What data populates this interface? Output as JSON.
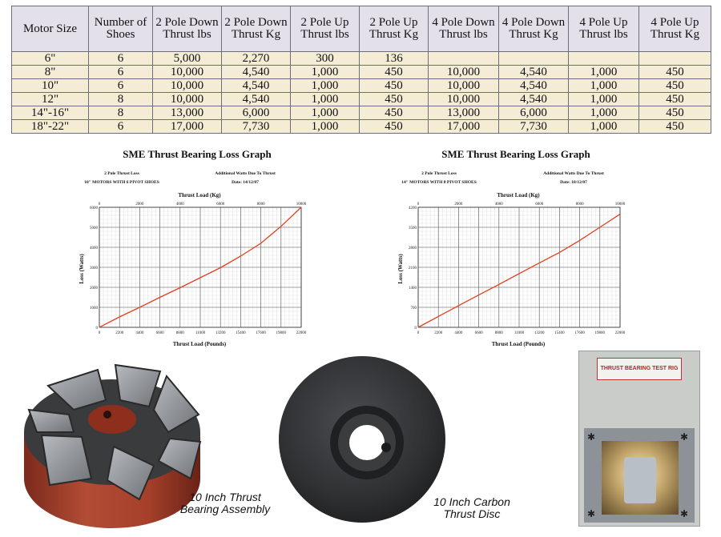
{
  "table": {
    "headers": [
      "Motor Size",
      "Number of Shoes",
      "2 Pole Down Thrust lbs",
      "2 Pole Down Thrust Kg",
      "2 Pole Up Thrust lbs",
      "2 Pole Up Thrust Kg",
      "4 Pole Down Thrust lbs",
      "4 Pole Down Thrust Kg",
      "4 Pole Up Thrust lbs",
      "4 Pole Up Thrust Kg"
    ],
    "rows": [
      [
        "6\"",
        "6",
        "5,000",
        "2,270",
        "300",
        "136",
        "",
        "",
        "",
        ""
      ],
      [
        "8\"",
        "6",
        "10,000",
        "4,540",
        "1,000",
        "450",
        "10,000",
        "4,540",
        "1,000",
        "450"
      ],
      [
        "10\"",
        "6",
        "10,000",
        "4,540",
        "1,000",
        "450",
        "10,000",
        "4,540",
        "1,000",
        "450"
      ],
      [
        "12\"",
        "8",
        "10,000",
        "4,540",
        "1,000",
        "450",
        "10,000",
        "4,540",
        "1,000",
        "450"
      ],
      [
        "14\"-16\"",
        "8",
        "13,000",
        "6,000",
        "1,000",
        "450",
        "13,000",
        "6,000",
        "1,000",
        "450"
      ],
      [
        "18\"-22\"",
        "6",
        "17,000",
        "7,730",
        "1,000",
        "450",
        "17,000",
        "7,730",
        "1,000",
        "450"
      ]
    ]
  },
  "graphs": [
    {
      "title": "SME Thrust Bearing Loss Graph",
      "subtitle_left_1": "2 Pole Thrust Loss",
      "subtitle_left_2": "10\" MOTORS WITH 6 PIVOT SHOES",
      "subtitle_right_1": "Additional Watts Due To Thrust",
      "subtitle_right_2": "Date: 14/12/07",
      "top_axis_label": "Thrust Load (Kg)",
      "bottom_axis_label": "Thrust Load (Pounds)",
      "y_axis_label": "Loss (Watts)",
      "line_color": "#e0401e"
    },
    {
      "title": "SME Thrust Bearing Loss Graph",
      "subtitle_left_1": "2 Pole Thrust Loss",
      "subtitle_left_2": "14\" MOTORS WITH 8 PIVOT SHOES",
      "subtitle_right_1": "Additional Watts Due To Thrust",
      "subtitle_right_2": "Date: 18/12/07",
      "top_axis_label": "Thrust Load (Kg)",
      "bottom_axis_label": "Thrust Load (Pounds)",
      "y_axis_label": "Loss (Watts)",
      "line_color": "#e0401e"
    }
  ],
  "chart_data": [
    {
      "type": "line",
      "title": "SME Thrust Bearing Loss Graph",
      "xlabel": "Thrust Load (Pounds)",
      "x2label": "Thrust Load (Kg)",
      "ylabel": "Loss (Watts)",
      "xlim": [
        0,
        22000
      ],
      "x2lim": [
        0,
        10000
      ],
      "ylim": [
        0,
        6000
      ],
      "x_ticks": [
        "0",
        "2200",
        "4400",
        "6600",
        "8800",
        "11000",
        "13200",
        "15400",
        "17600",
        "19800",
        "22000"
      ],
      "x2_ticks": [
        "0",
        "2000",
        "4000",
        "6000",
        "8000",
        "10000"
      ],
      "y_ticks": [
        "0",
        "1000",
        "2000",
        "3000",
        "4000",
        "5000",
        "6000"
      ],
      "grid": true,
      "series": [
        {
          "x": [
            0,
            2200,
            4400,
            6600,
            8800,
            11000,
            13200,
            15400,
            17600,
            19800,
            22000
          ],
          "y": [
            0,
            520,
            1000,
            1500,
            1980,
            2480,
            2980,
            3560,
            4200,
            5050,
            6000
          ]
        }
      ]
    },
    {
      "type": "line",
      "title": "SME Thrust Bearing Loss Graph",
      "xlabel": "Thrust Load (Pounds)",
      "x2label": "Thrust Load (Kg)",
      "ylabel": "Loss (Watts)",
      "xlim": [
        0,
        22000
      ],
      "x2lim": [
        0,
        10000
      ],
      "ylim": [
        0,
        4200
      ],
      "x_ticks": [
        "0",
        "2200",
        "4400",
        "6600",
        "8800",
        "11000",
        "13200",
        "15400",
        "17600",
        "19800",
        "22000"
      ],
      "x2_ticks": [
        "0",
        "2000",
        "4000",
        "6000",
        "8000",
        "10000"
      ],
      "y_ticks": [
        "0",
        "700",
        "1400",
        "2100",
        "2800",
        "3500",
        "4200"
      ],
      "grid": true,
      "series": [
        {
          "x": [
            0,
            2200,
            4400,
            6600,
            8800,
            11000,
            13200,
            15400,
            17600,
            19800,
            22000
          ],
          "y": [
            0,
            380,
            760,
            1130,
            1500,
            1880,
            2250,
            2620,
            3040,
            3500,
            3960
          ]
        }
      ]
    }
  ],
  "photos": [
    {
      "caption_1": "10 Inch Thrust",
      "caption_2": "Bearing Assembly"
    },
    {
      "caption_1": "10 Inch Carbon",
      "caption_2": "Thrust Disc"
    },
    {
      "sign": "THRUST BEARING TEST RIG"
    }
  ],
  "colors": {
    "table_header_bg": "#e4e0ea",
    "table_body_bg": "#f5ecd6",
    "bearing_pad": "#8a8e94",
    "bearing_base": "#a8432f",
    "carbon_disc": "#2e2f31",
    "rig_panel": "#c9ccc8"
  }
}
